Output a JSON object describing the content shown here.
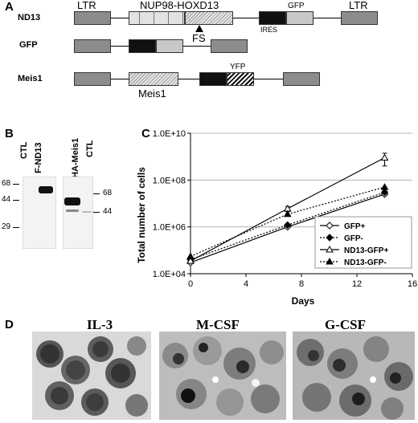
{
  "panelA": {
    "letter": "A",
    "rows": [
      {
        "name": "ND13"
      },
      {
        "name": "GFP"
      },
      {
        "name": "Meis1"
      }
    ],
    "labels": {
      "ltr_left": "LTR",
      "ltr_right": "LTR",
      "nup98_hoxd13": "NUP98-HOXD13",
      "gfp": "GFP",
      "ires": "IRES",
      "fs": "FS",
      "yfp": "YFP",
      "meis1": "Meis1"
    }
  },
  "panelB": {
    "letter": "B",
    "lane_labels": [
      "CTL",
      "F-ND13",
      "HA-Meis1",
      "CTL"
    ],
    "markers_left": [
      "68",
      "44",
      "29"
    ],
    "markers_right": [
      "68",
      "44"
    ]
  },
  "panelC": {
    "letter": "C"
  },
  "chart_data": {
    "type": "line",
    "ylabel": "Total number of cells",
    "xlabel": "Days",
    "y_scale": "log",
    "ylim": [
      10000,
      10000000000
    ],
    "xlim": [
      0,
      16
    ],
    "x_ticks": [
      0,
      4,
      8,
      12,
      16
    ],
    "y_ticks": [
      {
        "value": 10000,
        "label": "1.0E+04"
      },
      {
        "value": 1000000,
        "label": "1.0E+06"
      },
      {
        "value": 100000000,
        "label": "1.0E+08"
      },
      {
        "value": 10000000000,
        "label": "1.0E+10"
      }
    ],
    "grid": "horizontal",
    "legend_placement": "bottom-right",
    "series": [
      {
        "name": "GFP+",
        "style": "solid",
        "marker": "diamond-open",
        "x": [
          0,
          7,
          14
        ],
        "y": [
          30000,
          1000000,
          25000000
        ]
      },
      {
        "name": "GFP-",
        "style": "dotted",
        "marker": "diamond-filled",
        "x": [
          0,
          7,
          14
        ],
        "y": [
          40000,
          1200000,
          30000000
        ]
      },
      {
        "name": "ND13-GFP+",
        "style": "solid",
        "marker": "triangle-open",
        "x": [
          0,
          7,
          14
        ],
        "y": [
          35000,
          6000000,
          900000000
        ],
        "error": [
          null,
          1500000,
          500000000
        ]
      },
      {
        "name": "ND13-GFP-",
        "style": "dotted",
        "marker": "triangle-filled",
        "x": [
          0,
          7,
          14
        ],
        "y": [
          55000,
          3500000,
          50000000
        ]
      }
    ]
  },
  "panelD": {
    "letter": "D",
    "titles": [
      "IL-3",
      "M-CSF",
      "G-CSF"
    ]
  }
}
